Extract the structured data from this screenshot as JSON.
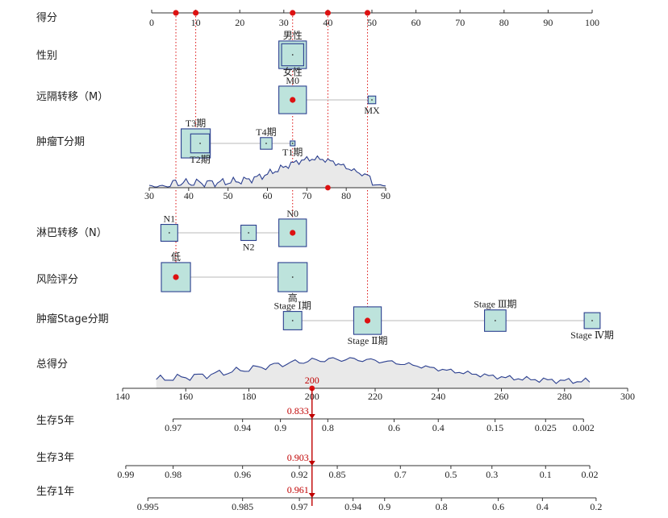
{
  "chart_data": {
    "type": "nomogram",
    "points_axis": {
      "label": "得分",
      "ticks": [
        0,
        10,
        20,
        30,
        40,
        50,
        60,
        70,
        80,
        90,
        100
      ]
    },
    "variables": [
      {
        "key": "sex",
        "label": "性别",
        "levels": [
          {
            "name": "男性",
            "points": 32,
            "label_pos": "above",
            "weight": 0.9,
            "selected": true
          },
          {
            "name": "女性",
            "points": 32,
            "label_pos": "below",
            "weight": 0.72,
            "selected": false
          }
        ]
      },
      {
        "key": "m",
        "label": "远隔转移（M）",
        "levels": [
          {
            "name": "M0",
            "points": 32,
            "label_pos": "above",
            "weight": 0.9,
            "selected": true
          },
          {
            "name": "MX",
            "points": 50,
            "label_pos": "below",
            "weight": 0.25,
            "selected": false
          }
        ]
      },
      {
        "key": "t",
        "label": "肿瘤T分期",
        "levels": [
          {
            "name": "T3期",
            "points": 10,
            "label_pos": "above",
            "weight": 0.95,
            "selected": true
          },
          {
            "name": "T2期",
            "points": 11,
            "label_pos": "below",
            "weight": 0.62,
            "selected": false
          },
          {
            "name": "T4期",
            "points": 26,
            "label_pos": "above",
            "weight": 0.38,
            "selected": false
          },
          {
            "name": "T1期",
            "points": 32,
            "label_pos": "below",
            "weight": 0.14,
            "selected": false
          }
        ]
      },
      {
        "key": "age",
        "label": "",
        "continuous": true,
        "ticks": [
          30,
          40,
          50,
          60,
          70,
          80,
          90
        ],
        "selected": 75
      },
      {
        "key": "n",
        "label": "淋巴转移（N）",
        "levels": [
          {
            "name": "N1",
            "points": 4,
            "label_pos": "above",
            "weight": 0.55,
            "selected": false
          },
          {
            "name": "N2",
            "points": 22,
            "label_pos": "below",
            "weight": 0.5,
            "selected": false
          },
          {
            "name": "N0",
            "points": 32,
            "label_pos": "above",
            "weight": 0.9,
            "selected": true
          }
        ]
      },
      {
        "key": "risk",
        "label": "风险评分",
        "levels": [
          {
            "name": "低",
            "points": 5.5,
            "label_pos": "above",
            "weight": 0.95,
            "selected": true
          },
          {
            "name": "高",
            "points": 32,
            "label_pos": "below",
            "weight": 0.95,
            "selected": false
          }
        ]
      },
      {
        "key": "stage",
        "label": "肿瘤Stage分期",
        "levels": [
          {
            "name": "Stage Ⅰ期",
            "points": 32,
            "label_pos": "above",
            "weight": 0.6,
            "selected": false
          },
          {
            "name": "Stage Ⅱ期",
            "points": 49,
            "label_pos": "below",
            "weight": 0.9,
            "selected": true
          },
          {
            "name": "Stage Ⅲ期",
            "points": 78,
            "label_pos": "above",
            "weight": 0.7,
            "selected": false
          },
          {
            "name": "Stage Ⅳ期",
            "points": 100,
            "label_pos": "below",
            "weight": 0.52,
            "selected": false
          }
        ]
      }
    ],
    "selected_points": [
      5.5,
      10,
      32,
      40,
      49
    ],
    "total_axis": {
      "label": "总得分",
      "ticks": [
        140,
        160,
        180,
        200,
        220,
        240,
        260,
        280,
        300
      ],
      "selected": 200,
      "selected_label": "200"
    },
    "survival_axes": [
      {
        "label": "生存5年",
        "ticks": [
          "0.97",
          "0.94",
          "0.9",
          "0.8",
          "0.6",
          "0.4",
          "0.15",
          "0.025",
          "0.002"
        ],
        "tick_totals": [
          156,
          178,
          190,
          205,
          226,
          240,
          258,
          274,
          286
        ],
        "predicted": "0.833"
      },
      {
        "label": "生存3年",
        "ticks": [
          "0.99",
          "0.98",
          "0.96",
          "0.92",
          "0.85",
          "0.7",
          "0.5",
          "0.3",
          "0.1",
          "0.02"
        ],
        "tick_totals": [
          141,
          156,
          178,
          196,
          208,
          228,
          244,
          257,
          274,
          288
        ],
        "predicted": "0.903"
      },
      {
        "label": "生存1年",
        "ticks": [
          "0.995",
          "0.985",
          "0.97",
          "0.94",
          "0.9",
          "0.8",
          "0.6",
          "0.4",
          "0.2"
        ],
        "tick_totals": [
          148,
          178,
          196,
          213,
          223,
          241,
          259,
          273,
          290
        ],
        "predicted": "0.961"
      }
    ],
    "colors": {
      "box_fill": "#bde3dc",
      "box_stroke": "#2b3f8f",
      "marker": "#dd1111",
      "density_line": "#2b3f8f",
      "density_fill": "#e9e9e9",
      "arrow": "#c00000"
    }
  }
}
